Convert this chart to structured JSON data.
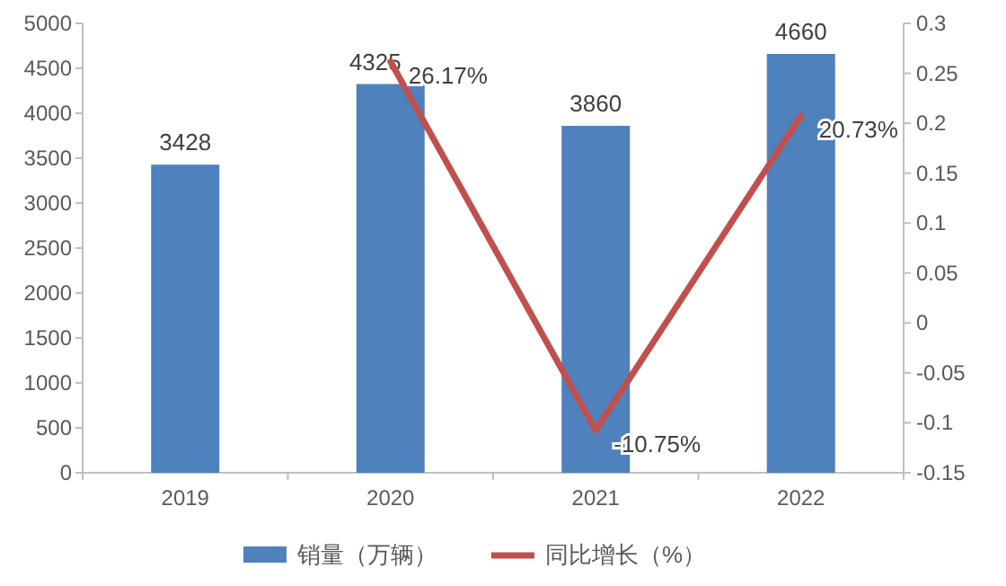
{
  "chart_data": {
    "type": "bar",
    "categories": [
      "2019",
      "2020",
      "2021",
      "2022"
    ],
    "series": [
      {
        "name": "销量（万辆）",
        "color": "#4f81bd",
        "values": [
          3428,
          4325,
          3860,
          4660
        ],
        "value_labels": [
          "3428",
          "4325",
          "3860",
          "4660"
        ]
      },
      {
        "name": "同比增长（%）",
        "type": "line",
        "axis": "y2",
        "color": "#c0504d",
        "values": [
          null,
          0.2617,
          -0.1075,
          0.2073
        ],
        "value_labels": [
          null,
          "26.17%",
          "-10.75%",
          "20.73%"
        ]
      }
    ],
    "ylim": [
      0,
      5000
    ],
    "yticks": [
      0,
      500,
      1000,
      1500,
      2000,
      2500,
      3000,
      3500,
      4000,
      4500,
      5000
    ],
    "y2lim": [
      -0.15,
      0.3
    ],
    "y2ticks": [
      -0.15,
      -0.1,
      -0.05,
      0,
      0.05,
      0.1,
      0.15,
      0.2,
      0.25,
      0.3
    ],
    "legend": "bottom",
    "grid": false,
    "marker": "none",
    "line_style": "solid"
  }
}
